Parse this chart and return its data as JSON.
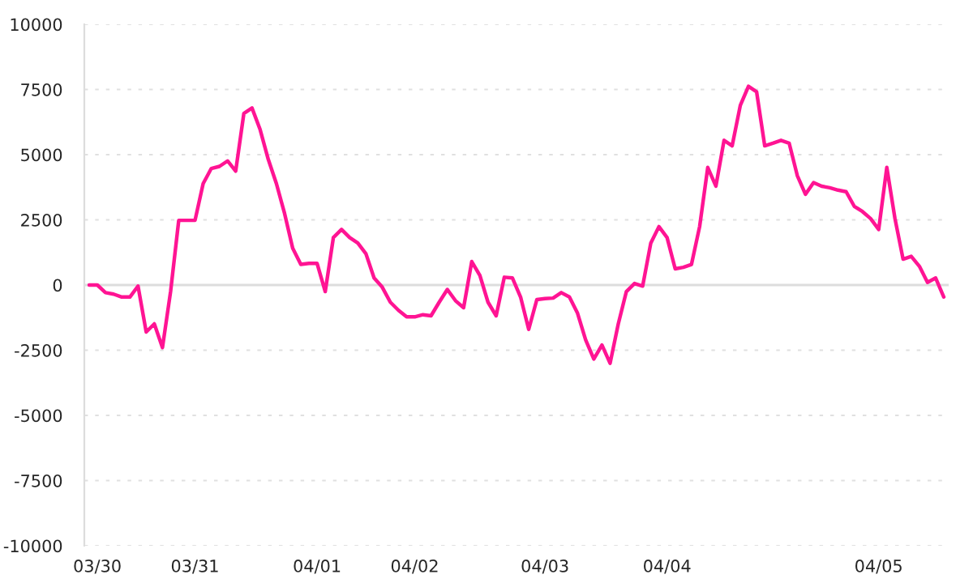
{
  "chart_data": {
    "type": "line",
    "color": "#ff1493",
    "categories": [
      null,
      "03/30",
      null,
      null,
      null,
      null,
      null,
      null,
      null,
      null,
      null,
      null,
      null,
      "03/31",
      null,
      null,
      null,
      null,
      null,
      null,
      null,
      null,
      null,
      null,
      null,
      null,
      null,
      null,
      "04/01",
      null,
      null,
      null,
      null,
      null,
      null,
      null,
      null,
      null,
      null,
      null,
      "04/02",
      null,
      null,
      null,
      null,
      null,
      null,
      null,
      null,
      null,
      null,
      null,
      null,
      null,
      null,
      null,
      "04/03",
      null,
      null,
      null,
      null,
      null,
      null,
      null,
      null,
      null,
      null,
      null,
      null,
      null,
      null,
      "04/04",
      null,
      null,
      null,
      null,
      null,
      null,
      null,
      null,
      null,
      null,
      null,
      null,
      null,
      null,
      null,
      null,
      null,
      null,
      null,
      null,
      null,
      null,
      null,
      null,
      null,
      "04/05",
      null,
      null,
      null,
      null,
      null,
      null,
      null,
      null
    ],
    "values": [
      0,
      0,
      -290,
      -350,
      -460,
      -460,
      -40,
      -1800,
      -1490,
      -2400,
      -250,
      2480,
      2480,
      2480,
      3890,
      4470,
      4550,
      4760,
      4370,
      6580,
      6790,
      5960,
      4820,
      3890,
      2750,
      1410,
      790,
      830,
      830,
      -250,
      1820,
      2130,
      1820,
      1610,
      1200,
      270,
      -80,
      -660,
      -970,
      -1220,
      -1220,
      -1140,
      -1180,
      -660,
      -170,
      -600,
      -870,
      900,
      370,
      -660,
      -1180,
      300,
      270,
      -460,
      -1700,
      -560,
      -520,
      -500,
      -290,
      -460,
      -1080,
      -2110,
      -2840,
      -2300,
      -3000,
      -1500,
      -250,
      60,
      -40,
      1610,
      2240,
      1820,
      620,
      680,
      790,
      2240,
      4510,
      3790,
      5550,
      5340,
      6890,
      7620,
      7410,
      5340,
      5440,
      5550,
      5440,
      4200,
      3480,
      3930,
      3790,
      3730,
      3640,
      3580,
      3020,
      2820,
      2550,
      2130,
      4510,
      2550,
      990,
      1100,
      720,
      100,
      270,
      -460
    ],
    "ylim": [
      -10000,
      10000
    ],
    "yticks": [
      -10000,
      -7500,
      -5000,
      -2500,
      0,
      2500,
      5000,
      7500,
      10000
    ],
    "grid": "y",
    "ref_lines": [
      {
        "axis": "y",
        "value": 0,
        "color": "#dddddd"
      }
    ],
    "line_style": "solid",
    "marker": "none",
    "legend": false
  }
}
